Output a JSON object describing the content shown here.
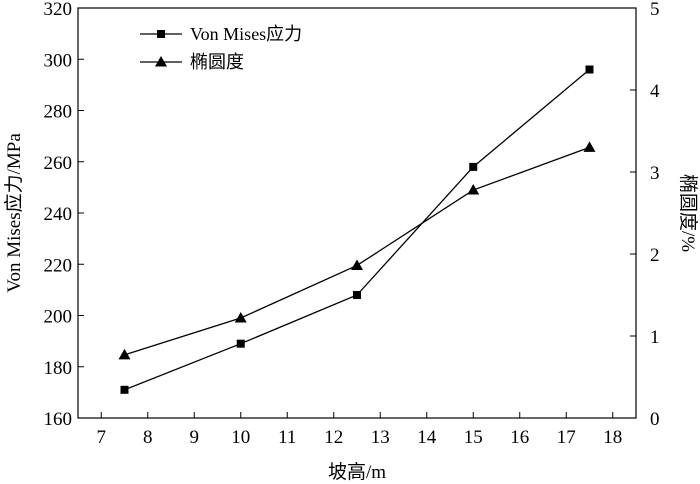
{
  "chart_data": {
    "type": "line",
    "xlabel": "坡高/m",
    "ylabel_left": "Von Mises应力/MPa",
    "ylabel_right": "椭圆度/%",
    "xlim": [
      6.5,
      18.5
    ],
    "xticks": [
      7,
      8,
      9,
      10,
      11,
      12,
      13,
      14,
      15,
      16,
      17,
      18
    ],
    "ylim_left": [
      160,
      320
    ],
    "yticks_left": [
      160,
      180,
      200,
      220,
      240,
      260,
      280,
      300,
      320
    ],
    "ylim_right": [
      0,
      5
    ],
    "yticks_right": [
      0,
      1,
      2,
      3,
      4,
      5
    ],
    "grid": false,
    "legend_position": "top-left",
    "series": [
      {
        "name": "Von Mises应力",
        "axis": "left",
        "marker": "square",
        "x": [
          7.5,
          10,
          12.5,
          15,
          17.5
        ],
        "y": [
          171,
          189,
          208,
          258,
          296
        ]
      },
      {
        "name": "椭圆度",
        "axis": "right",
        "marker": "triangle",
        "x": [
          7.5,
          10,
          12.5,
          15,
          17.5
        ],
        "y": [
          0.77,
          1.22,
          1.86,
          2.78,
          3.3
        ]
      }
    ]
  }
}
